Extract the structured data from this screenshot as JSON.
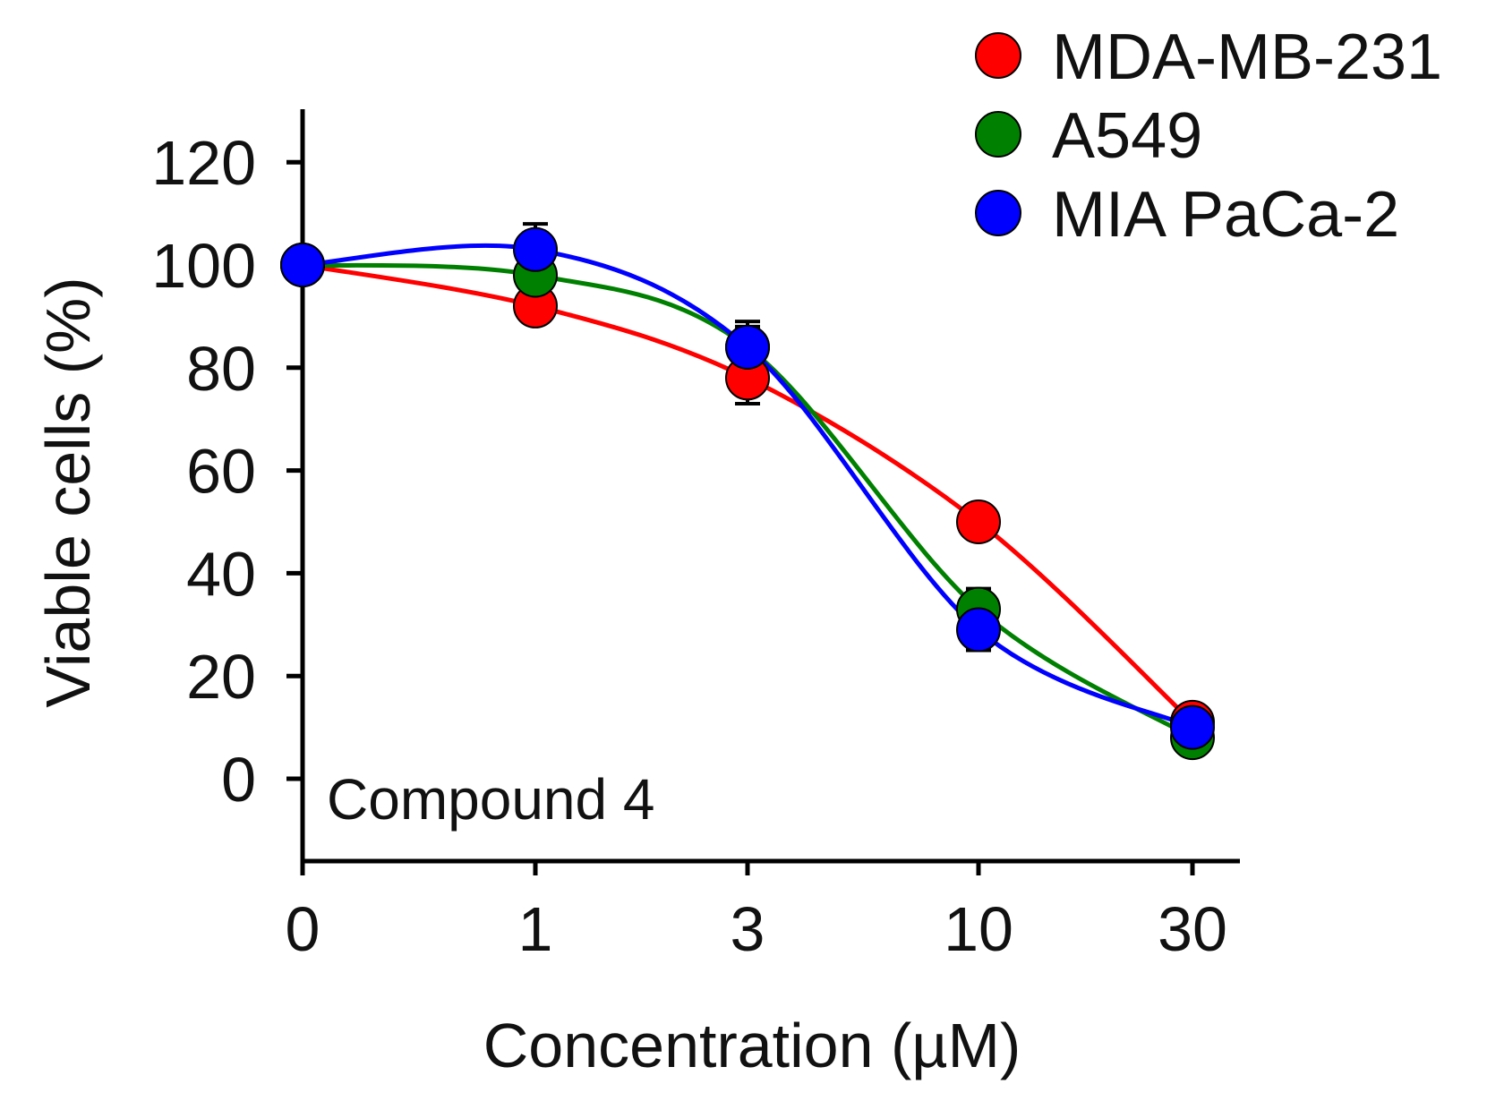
{
  "chart_data": {
    "type": "scatter",
    "annotation": "Compound 4",
    "xlabel": "Concentration (µM)",
    "ylabel": "Viable cells (%)",
    "x_categories": [
      "0",
      "1",
      "3",
      "10",
      "30"
    ],
    "yticks": [
      0,
      20,
      40,
      60,
      80,
      100,
      120
    ],
    "ylim": [
      -15,
      130
    ],
    "legend_position": "top-right",
    "grid": false,
    "series": [
      {
        "name": "MDA-MB-231",
        "color": "#ff0000",
        "values": [
          100,
          92,
          78,
          50,
          11
        ],
        "errors": [
          1,
          3,
          5,
          3,
          3
        ]
      },
      {
        "name": "A549",
        "color": "#008000",
        "values": [
          100,
          98,
          84,
          33,
          8
        ],
        "errors": [
          1,
          3,
          5,
          4,
          2
        ]
      },
      {
        "name": "MIA PaCa-2",
        "color": "#0000ff",
        "values": [
          100,
          103,
          84,
          29,
          10
        ],
        "errors": [
          1,
          5,
          4,
          4,
          2
        ]
      }
    ]
  }
}
